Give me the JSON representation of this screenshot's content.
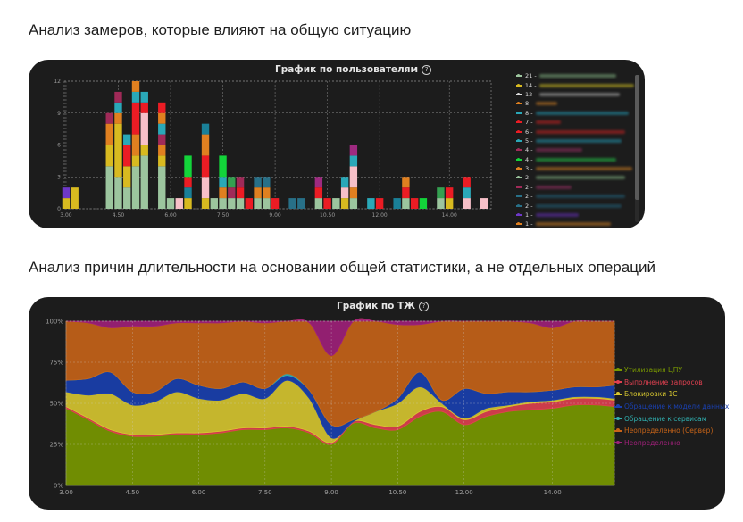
{
  "headings": {
    "first": "Анализ замеров, которые влияют на общую ситуацию",
    "second": "Анализ причин длительности на основании общей статистики, а не отдельных операций"
  },
  "chart_data": [
    {
      "type": "bar",
      "stacked": true,
      "title": "График по пользователям",
      "title_icon": "help-icon",
      "x": [
        3.0,
        3.25,
        3.75,
        4.25,
        4.5,
        4.75,
        5.0,
        5.25,
        5.75,
        6.0,
        6.25,
        6.5,
        7.0,
        7.25,
        7.5,
        7.75,
        8.0,
        8.25,
        8.5,
        8.75,
        9.0,
        9.5,
        9.75,
        10.25,
        10.5,
        10.75,
        11.0,
        11.25,
        11.75,
        12.0,
        12.5,
        12.75,
        13.0,
        13.25,
        13.75,
        14.0,
        14.5,
        15.0
      ],
      "xticks": [
        "3.00",
        "4.50",
        "6.00",
        "7.50",
        "9.00",
        "10.50",
        "12.00",
        "14.00"
      ],
      "xtick_values": [
        3.0,
        4.5,
        6.0,
        7.5,
        9.0,
        10.5,
        12.0,
        14.0
      ],
      "xlim": [
        2.95,
        15.2
      ],
      "yticks": [
        "0",
        "3",
        "6",
        "9",
        "12"
      ],
      "ylim": [
        0,
        12
      ],
      "grid": true,
      "series_colors": [
        "#9cc59e",
        "#d8ba20",
        "#e08020",
        "#eb1c24",
        "#2aa8b8",
        "#a02a58",
        "#f7c0c8",
        "#13d43a",
        "#34a050",
        "#1a8098",
        "#287088",
        "#9e2a80",
        "#6e38c8"
      ],
      "bars": [
        {
          "x": 3.0,
          "stack": [
            [
              1,
              1
            ],
            [
              12,
              1
            ]
          ]
        },
        {
          "x": 3.25,
          "stack": [
            [
              1,
              2
            ]
          ]
        },
        {
          "x": 4.25,
          "stack": [
            [
              0,
              4
            ],
            [
              1,
              2
            ],
            [
              2,
              2
            ],
            [
              5,
              1
            ]
          ]
        },
        {
          "x": 4.5,
          "stack": [
            [
              0,
              3
            ],
            [
              1,
              5
            ],
            [
              2,
              1
            ],
            [
              4,
              1
            ],
            [
              5,
              1
            ]
          ]
        },
        {
          "x": 4.75,
          "stack": [
            [
              0,
              2
            ],
            [
              1,
              2
            ],
            [
              3,
              2
            ],
            [
              4,
              1
            ]
          ]
        },
        {
          "x": 5.0,
          "stack": [
            [
              0,
              4
            ],
            [
              1,
              1
            ],
            [
              2,
              2
            ],
            [
              3,
              3
            ],
            [
              4,
              1
            ],
            [
              2,
              1
            ]
          ]
        },
        {
          "x": 5.25,
          "stack": [
            [
              0,
              5
            ],
            [
              1,
              1
            ],
            [
              6,
              3
            ],
            [
              3,
              1
            ],
            [
              4,
              1
            ]
          ]
        },
        {
          "x": 5.75,
          "stack": [
            [
              0,
              4
            ],
            [
              1,
              1
            ],
            [
              2,
              1
            ],
            [
              5,
              1
            ],
            [
              4,
              1
            ],
            [
              2,
              1
            ],
            [
              3,
              1
            ]
          ]
        },
        {
          "x": 6.0,
          "stack": [
            [
              0,
              1
            ]
          ]
        },
        {
          "x": 6.25,
          "stack": [
            [
              6,
              1
            ]
          ]
        },
        {
          "x": 6.5,
          "stack": [
            [
              1,
              1
            ],
            [
              9,
              1
            ],
            [
              3,
              1
            ],
            [
              7,
              2
            ]
          ]
        },
        {
          "x": 7.0,
          "stack": [
            [
              1,
              1
            ],
            [
              6,
              2
            ],
            [
              3,
              2
            ],
            [
              2,
              2
            ],
            [
              9,
              1
            ]
          ]
        },
        {
          "x": 7.25,
          "stack": [
            [
              0,
              1
            ]
          ]
        },
        {
          "x": 7.5,
          "stack": [
            [
              0,
              1
            ],
            [
              2,
              1
            ],
            [
              4,
              1
            ],
            [
              7,
              2
            ]
          ]
        },
        {
          "x": 7.75,
          "stack": [
            [
              0,
              1
            ],
            [
              5,
              1
            ],
            [
              8,
              1
            ]
          ]
        },
        {
          "x": 8.0,
          "stack": [
            [
              0,
              1
            ],
            [
              3,
              1
            ],
            [
              5,
              1
            ]
          ]
        },
        {
          "x": 8.25,
          "stack": [
            [
              3,
              1
            ]
          ]
        },
        {
          "x": 8.5,
          "stack": [
            [
              0,
              1
            ],
            [
              2,
              1
            ],
            [
              10,
              1
            ]
          ]
        },
        {
          "x": 8.75,
          "stack": [
            [
              0,
              1
            ],
            [
              2,
              1
            ],
            [
              10,
              1
            ]
          ]
        },
        {
          "x": 9.0,
          "stack": [
            [
              3,
              1
            ]
          ]
        },
        {
          "x": 9.5,
          "stack": [
            [
              10,
              1
            ]
          ]
        },
        {
          "x": 9.75,
          "stack": [
            [
              10,
              1
            ]
          ]
        },
        {
          "x": 10.25,
          "stack": [
            [
              0,
              1
            ],
            [
              3,
              1
            ],
            [
              11,
              1
            ]
          ]
        },
        {
          "x": 10.5,
          "stack": [
            [
              3,
              1
            ]
          ]
        },
        {
          "x": 10.75,
          "stack": [
            [
              0,
              1
            ]
          ]
        },
        {
          "x": 11.0,
          "stack": [
            [
              1,
              1
            ],
            [
              6,
              1
            ],
            [
              4,
              1
            ]
          ]
        },
        {
          "x": 11.25,
          "stack": [
            [
              0,
              1
            ],
            [
              2,
              1
            ],
            [
              6,
              2
            ],
            [
              4,
              1
            ],
            [
              11,
              1
            ]
          ]
        },
        {
          "x": 11.75,
          "stack": [
            [
              4,
              1
            ]
          ]
        },
        {
          "x": 12.0,
          "stack": [
            [
              3,
              1
            ]
          ]
        },
        {
          "x": 12.5,
          "stack": [
            [
              9,
              1
            ]
          ]
        },
        {
          "x": 12.75,
          "stack": [
            [
              0,
              1
            ],
            [
              3,
              1
            ],
            [
              2,
              1
            ]
          ]
        },
        {
          "x": 13.0,
          "stack": [
            [
              3,
              1
            ]
          ]
        },
        {
          "x": 13.25,
          "stack": [
            [
              7,
              1
            ]
          ]
        },
        {
          "x": 13.75,
          "stack": [
            [
              0,
              1
            ],
            [
              8,
              1
            ]
          ]
        },
        {
          "x": 14.0,
          "stack": [
            [
              1,
              1
            ],
            [
              3,
              1
            ]
          ]
        },
        {
          "x": 14.5,
          "stack": [
            [
              6,
              1
            ],
            [
              4,
              1
            ],
            [
              3,
              1
            ]
          ]
        },
        {
          "x": 15.0,
          "stack": [
            [
              6,
              1
            ]
          ]
        }
      ]
    },
    {
      "type": "area",
      "stacked": true,
      "percent": true,
      "title": "График по ТЖ",
      "title_icon": "help-icon",
      "x": [
        3.0,
        3.5,
        4.0,
        4.5,
        5.0,
        5.5,
        6.0,
        6.5,
        7.0,
        7.5,
        8.0,
        8.5,
        9.0,
        9.5,
        10.0,
        10.5,
        11.0,
        11.5,
        12.0,
        12.5,
        13.0,
        13.5,
        14.0,
        14.5,
        15.0,
        15.4
      ],
      "xticks": [
        "3.00",
        "4.50",
        "6.00",
        "7.50",
        "9.00",
        "10.50",
        "12.00",
        "14.00"
      ],
      "xtick_values": [
        3.0,
        4.5,
        6.0,
        7.5,
        9.0,
        10.5,
        12.0,
        14.0
      ],
      "xlim": [
        3.0,
        15.4
      ],
      "yticks": [
        "0%",
        "25%",
        "50%",
        "75%",
        "100%"
      ],
      "ylim": [
        0,
        100
      ],
      "grid": true,
      "legend_position": "right",
      "series": [
        {
          "name": "Утилизация ЦПУ",
          "color": "#7a9a00",
          "values": [
            47,
            40,
            33,
            30,
            30,
            31,
            31,
            32,
            34,
            34,
            35,
            32,
            25,
            38,
            35,
            34,
            42,
            45,
            37,
            42,
            45,
            46,
            47,
            49,
            49,
            48
          ]
        },
        {
          "name": "Выполнение запросов",
          "color": "#e04050",
          "values": [
            1,
            1,
            1,
            1,
            1,
            1,
            1,
            1,
            1,
            1,
            1,
            1,
            1,
            1,
            2,
            2,
            3,
            3,
            3,
            3,
            3,
            4,
            4,
            4,
            4,
            4
          ]
        },
        {
          "name": "Блокировки 1С",
          "color": "#d8c830",
          "values": [
            9,
            14,
            22,
            18,
            20,
            25,
            21,
            19,
            21,
            18,
            28,
            20,
            3,
            0,
            8,
            14,
            15,
            2,
            1,
            2,
            1,
            1,
            1,
            1,
            1,
            1
          ]
        },
        {
          "name": "Обращение к модели данных",
          "color": "#1a40b0",
          "values": [
            7,
            10,
            13,
            8,
            6,
            8,
            8,
            7,
            7,
            6,
            3,
            5,
            8,
            1,
            0,
            3,
            9,
            2,
            18,
            9,
            8,
            6,
            6,
            6,
            6,
            8
          ]
        },
        {
          "name": "Обращение к сервисам",
          "color": "#30b0b0",
          "values": [
            0,
            0,
            0,
            0,
            0,
            0,
            0,
            0,
            0,
            0,
            1,
            0,
            0,
            0,
            0,
            0,
            0,
            0,
            0,
            0,
            0,
            0,
            0,
            0,
            0,
            0
          ]
        },
        {
          "name": "Неопределенно (Сервер)",
          "color": "#c86418",
          "values": [
            36,
            34,
            27,
            40,
            40,
            34,
            38,
            40,
            37,
            40,
            32,
            41,
            42,
            60,
            55,
            45,
            29,
            48,
            41,
            44,
            43,
            42,
            38,
            40,
            41,
            39
          ]
        },
        {
          "name": "Неопределенно",
          "color": "#a0207a",
          "values": [
            0,
            1,
            4,
            3,
            3,
            1,
            1,
            1,
            0,
            1,
            0,
            1,
            21,
            0,
            0,
            2,
            2,
            0,
            0,
            0,
            0,
            1,
            4,
            0,
            0,
            0
          ]
        }
      ]
    }
  ],
  "user_legend": [
    {
      "label": "21 -",
      "color": "#9cc59e",
      "blur_color": "#5a7a5a",
      "blur_w": 86
    },
    {
      "label": "14 -",
      "color": "#d8ba20",
      "blur_color": "#8a8020",
      "blur_w": 108
    },
    {
      "label": "12 -",
      "color": "#e0e0e0",
      "blur_color": "#7a7a7a",
      "blur_w": 90
    },
    {
      "label": "8 -",
      "color": "#e08020",
      "blur_color": "#8a5820",
      "blur_w": 24
    },
    {
      "label": "8 -",
      "color": "#2aa8b8",
      "blur_color": "#206878",
      "blur_w": 104
    },
    {
      "label": "7 -",
      "color": "#eb1c24",
      "blur_color": "#8a2020",
      "blur_w": 28
    },
    {
      "label": "6 -",
      "color": "#eb1c24",
      "blur_color": "#8a2020",
      "blur_w": 100
    },
    {
      "label": "5 -",
      "color": "#2aa8b8",
      "blur_color": "#206878",
      "blur_w": 96
    },
    {
      "label": "4 -",
      "color": "#a02a58",
      "blur_color": "#6a2848",
      "blur_w": 52
    },
    {
      "label": "4 -",
      "color": "#13d43a",
      "blur_color": "#208838",
      "blur_w": 90
    },
    {
      "label": "3 -",
      "color": "#e08020",
      "blur_color": "#8a5820",
      "blur_w": 108
    },
    {
      "label": "2 -",
      "color": "#9cc59e",
      "blur_color": "#5a7a5a",
      "blur_w": 100
    },
    {
      "label": "2 -",
      "color": "#a02a58",
      "blur_color": "#6a2848",
      "blur_w": 40
    },
    {
      "label": "2 -",
      "color": "#287088",
      "blur_color": "#204858",
      "blur_w": 100
    },
    {
      "label": "2 -",
      "color": "#287088",
      "blur_color": "#204858",
      "blur_w": 96
    },
    {
      "label": "1 -",
      "color": "#6e38c8",
      "blur_color": "#4a2880",
      "blur_w": 48
    },
    {
      "label": "1 -",
      "color": "#e08020",
      "blur_color": "#8a5820",
      "blur_w": 84
    }
  ]
}
